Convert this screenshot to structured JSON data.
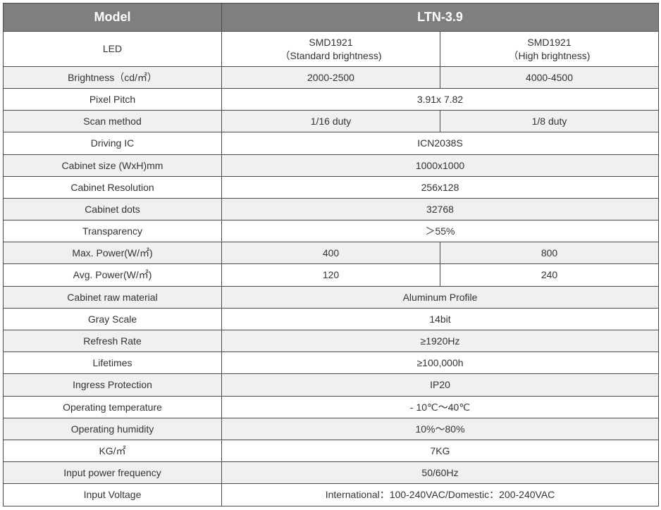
{
  "colors": {
    "header_bg": "#7f7f7f",
    "header_fg": "#ffffff",
    "border": "#4a4a4a",
    "shade_bg": "#f0f0f0",
    "text": "#333333",
    "bg": "#ffffff"
  },
  "header": {
    "left": "Model",
    "right": "LTN-3.9"
  },
  "led_row": {
    "label": "LED",
    "col1_line1": "SMD1921",
    "col1_line2": "（Standard brightness)",
    "col2_line1": "SMD1921",
    "col2_line2": "（High brightness)"
  },
  "rows": [
    {
      "label": "Brightness（cd/㎡）",
      "type": "split",
      "v1": "2000-2500",
      "v2": "4000-4500",
      "shade": true
    },
    {
      "label": "Pixel Pitch",
      "type": "merged",
      "v": "3.91x 7.82",
      "shade": false
    },
    {
      "label": "Scan method",
      "type": "split",
      "v1": "1/16 duty",
      "v2": "1/8 duty",
      "shade": true
    },
    {
      "label": "Driving IC",
      "type": "merged",
      "v": "ICN2038S",
      "shade": false
    },
    {
      "label": "Cabinet size (WxH)mm",
      "type": "merged",
      "v": "1000x1000",
      "shade": true
    },
    {
      "label": "Cabinet Resolution",
      "type": "merged",
      "v": "256x128",
      "shade": false
    },
    {
      "label": "Cabinet dots",
      "type": "merged",
      "v": "32768",
      "shade": true
    },
    {
      "label": "Transparency",
      "type": "merged",
      "v": "＞55%",
      "shade": false
    },
    {
      "label": "Max. Power(W/㎡)",
      "type": "split",
      "v1": "400",
      "v2": "800",
      "shade": true
    },
    {
      "label": "Avg. Power(W/㎡)",
      "type": "split",
      "v1": "120",
      "v2": "240",
      "shade": false
    },
    {
      "label": "Cabinet raw material",
      "type": "merged",
      "v": "Aluminum  Profile",
      "shade": true
    },
    {
      "label": "Gray Scale",
      "type": "merged",
      "v": "14bit",
      "shade": false
    },
    {
      "label": "Refresh Rate",
      "type": "merged",
      "v": "≥1920Hz",
      "shade": true
    },
    {
      "label": "Lifetimes",
      "type": "merged",
      "v": "≥100,000h",
      "shade": false
    },
    {
      "label": "Ingress Protection",
      "type": "merged",
      "v": "IP20",
      "shade": true
    },
    {
      "label": "Operating temperature",
      "type": "merged",
      "v": "- 10℃～40℃",
      "shade": false
    },
    {
      "label": "Operating humidity",
      "type": "merged",
      "v": "10%～80%",
      "shade": true
    },
    {
      "label": "KG/㎡",
      "type": "merged",
      "v": "7KG",
      "shade": false
    },
    {
      "label": "Input power frequency",
      "type": "merged",
      "v": "50/60Hz",
      "shade": true
    },
    {
      "label": "Input Voltage",
      "type": "merged",
      "v": "International：100-240VAC/Domestic：200-240VAC",
      "shade": false
    }
  ]
}
